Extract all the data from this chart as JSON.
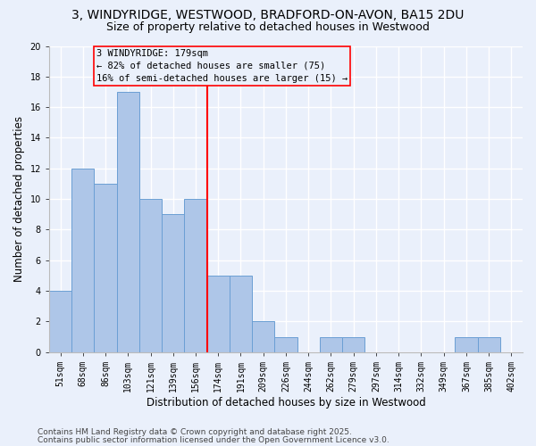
{
  "title1": "3, WINDYRIDGE, WESTWOOD, BRADFORD-ON-AVON, BA15 2DU",
  "title2": "Size of property relative to detached houses in Westwood",
  "xlabel": "Distribution of detached houses by size in Westwood",
  "ylabel": "Number of detached properties",
  "categories": [
    "51sqm",
    "68sqm",
    "86sqm",
    "103sqm",
    "121sqm",
    "139sqm",
    "156sqm",
    "174sqm",
    "191sqm",
    "209sqm",
    "226sqm",
    "244sqm",
    "262sqm",
    "279sqm",
    "297sqm",
    "314sqm",
    "332sqm",
    "349sqm",
    "367sqm",
    "385sqm",
    "402sqm"
  ],
  "values": [
    4,
    12,
    11,
    17,
    10,
    9,
    10,
    5,
    5,
    2,
    1,
    0,
    1,
    1,
    0,
    0,
    0,
    0,
    1,
    1,
    0
  ],
  "bar_color": "#aec6e8",
  "bar_edge_color": "#6b9fd4",
  "vline_color": "red",
  "vline_index": 7,
  "annotation_text": "3 WINDYRIDGE: 179sqm\n← 82% of detached houses are smaller (75)\n16% of semi-detached houses are larger (15) →",
  "ylim": [
    0,
    20
  ],
  "yticks": [
    0,
    2,
    4,
    6,
    8,
    10,
    12,
    14,
    16,
    18,
    20
  ],
  "footnote1": "Contains HM Land Registry data © Crown copyright and database right 2025.",
  "footnote2": "Contains public sector information licensed under the Open Government Licence v3.0.",
  "bg_color": "#eaf0fb",
  "grid_color": "#ffffff",
  "title_fontsize": 10,
  "subtitle_fontsize": 9,
  "axis_label_fontsize": 8.5,
  "tick_fontsize": 7,
  "footnote_fontsize": 6.5,
  "annotation_fontsize": 7.5
}
